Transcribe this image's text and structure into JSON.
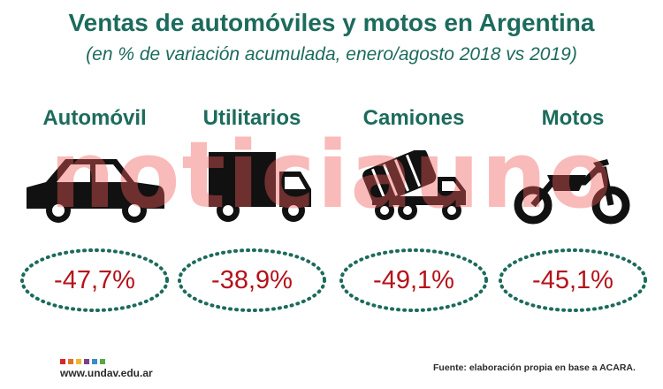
{
  "header": {
    "title": "Ventas de automóviles y motos en Argentina",
    "subtitle": "(en % de variación acumulada, enero/agosto 2018 vs 2019)"
  },
  "chart_data": {
    "type": "table",
    "title": "Ventas de automóviles y motos en Argentina",
    "subtitle": "(en % de variación acumulada, enero/agosto 2018 vs 2019)",
    "categories": [
      "Automóvil",
      "Utilitarios",
      "Camiones",
      "Motos"
    ],
    "values": [
      -47.7,
      -38.9,
      -49.1,
      -45.1
    ],
    "value_labels": [
      "-47,7%",
      "-38,9%",
      "-49,1%",
      "-45,1%"
    ],
    "icons": [
      "car-icon",
      "truck-icon",
      "cement-truck-icon",
      "motorcycle-icon"
    ],
    "colors": {
      "heading": "#1c6b5c",
      "value": "#b5121b",
      "ellipse": "#1c6b5c",
      "icon": "#111111"
    }
  },
  "watermark": "noticiauno",
  "footer": {
    "logo_text": "www.undav.edu.ar",
    "logo_colors": [
      "#d6262e",
      "#e0712b",
      "#f0b62e",
      "#7b3f8c",
      "#3a8dc9",
      "#58a847"
    ],
    "source": "Fuente: elaboración propia en base a ACARA."
  }
}
